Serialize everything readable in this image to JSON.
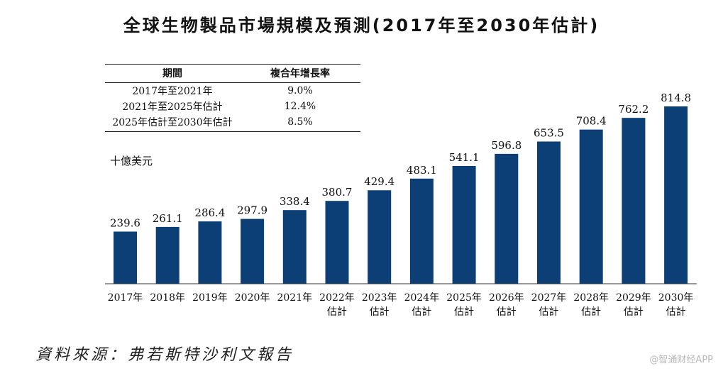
{
  "title": "全球生物製品市場規模及預測(2017年至2030年估計)",
  "cagr_table": {
    "headers": [
      "期間",
      "複合年增長率"
    ],
    "rows": [
      [
        "2017年至2021年",
        "9.0%"
      ],
      [
        "2021年至2025年估計",
        "12.4%"
      ],
      [
        "2025年估計至2030年估計",
        "8.5%"
      ]
    ]
  },
  "unit_label": "十億美元",
  "source": "資料來源：弗若斯特沙利文報告",
  "watermark": "@智通财经APP",
  "chart_data": {
    "type": "bar",
    "title": "全球生物製品市場規模及預測(2017年至2030年估計)",
    "ylabel": "十億美元",
    "categories": [
      [
        "2017年"
      ],
      [
        "2018年"
      ],
      [
        "2019年"
      ],
      [
        "2020年"
      ],
      [
        "2021年"
      ],
      [
        "2022年",
        "估計"
      ],
      [
        "2023年",
        "估計"
      ],
      [
        "2024年",
        "估計"
      ],
      [
        "2025年",
        "估計"
      ],
      [
        "2026年",
        "估計"
      ],
      [
        "2027年",
        "估計"
      ],
      [
        "2028年",
        "估計"
      ],
      [
        "2029年",
        "估計"
      ],
      [
        "2030年",
        "估計"
      ]
    ],
    "values": [
      239.6,
      261.1,
      286.4,
      297.9,
      338.4,
      380.7,
      429.4,
      483.1,
      541.1,
      596.8,
      653.5,
      708.4,
      762.2,
      814.8
    ],
    "value_labels": [
      "239.6",
      "261.1",
      "286.4",
      "297.9",
      "338.4",
      "380.7",
      "429.4",
      "483.1",
      "541.1",
      "596.8",
      "653.5",
      "708.4",
      "762.2",
      "814.8"
    ],
    "ylim": [
      0,
      814.8
    ],
    "grid": false,
    "bar_color": "#0d3f77"
  }
}
